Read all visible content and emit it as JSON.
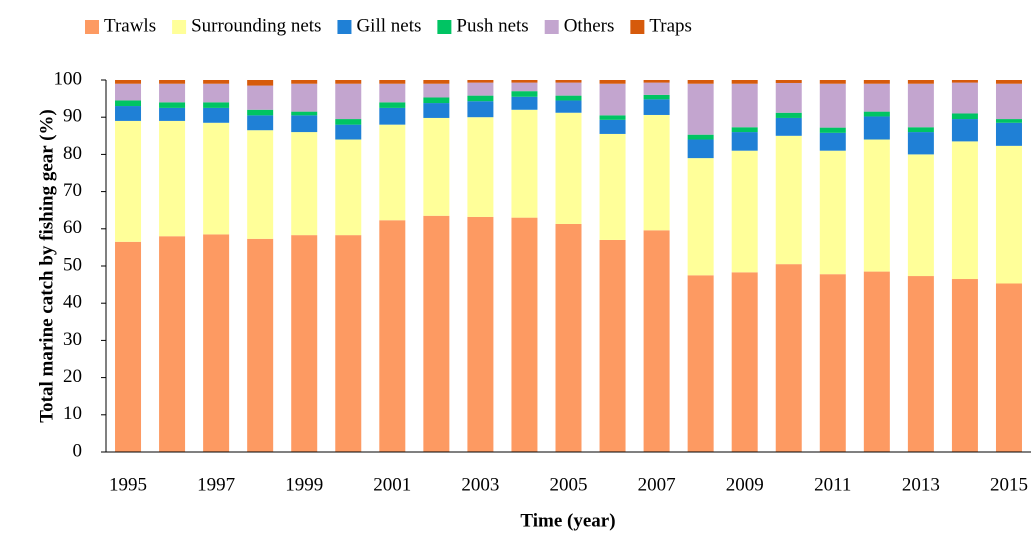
{
  "chart_data": {
    "type": "stacked_bar",
    "x_label": "Time (year)",
    "y_label": "Total marine catch by fishing gear (%)",
    "categories": [
      "1995",
      null,
      "1997",
      null,
      "1999",
      null,
      "2001",
      null,
      "2003",
      null,
      "2005",
      null,
      "2007",
      null,
      "2009",
      null,
      "2011",
      null,
      "2013",
      null,
      "2015"
    ],
    "series": [
      {
        "name": "Trawls",
        "color": "#fd9a62",
        "values": [
          56.5,
          58,
          58.5,
          57.3,
          58.3,
          58.3,
          62.3,
          63.5,
          63.2,
          63,
          61.3,
          57,
          59.6,
          47.5,
          48.3,
          50.5,
          47.8,
          48.5,
          47.3,
          46.5,
          45.3
        ]
      },
      {
        "name": "Surrounding nets",
        "color": "#ffff99",
        "values": [
          32.5,
          31,
          30,
          29.2,
          27.7,
          25.7,
          25.7,
          26.3,
          26.8,
          29,
          29.9,
          28.5,
          31,
          31.5,
          32.7,
          34.5,
          33.2,
          35.5,
          32.7,
          37,
          37
        ]
      },
      {
        "name": "Gill nets",
        "color": "#1f80d6",
        "values": [
          4,
          3.5,
          4,
          4,
          4.5,
          4,
          4.5,
          4,
          4.3,
          3.5,
          3.3,
          3.8,
          4.2,
          5,
          5,
          4.8,
          4.8,
          6.2,
          6,
          6,
          6.2
        ]
      },
      {
        "name": "Push nets",
        "color": "#00c463",
        "values": [
          1.5,
          1.5,
          1.5,
          1.5,
          1,
          1.5,
          1.5,
          1.5,
          1.5,
          1.5,
          1.3,
          1.2,
          1.2,
          1.3,
          1.3,
          1.4,
          1.4,
          1.3,
          1.3,
          1.5,
          1
        ]
      },
      {
        "name": "Others",
        "color": "#c3a5cf",
        "values": [
          4.5,
          5,
          5,
          6.5,
          7.5,
          9.5,
          5,
          3.7,
          3.5,
          2.3,
          3.5,
          8.5,
          3.3,
          13.7,
          11.7,
          8,
          11.8,
          7.5,
          11.7,
          8.3,
          9.5
        ]
      },
      {
        "name": "Traps",
        "color": "#d65a0b",
        "values": [
          1,
          1,
          1,
          1.5,
          1,
          1,
          1,
          1,
          0.7,
          0.7,
          0.7,
          1,
          0.7,
          1,
          1,
          0.8,
          1,
          1,
          1,
          0.7,
          1
        ]
      }
    ],
    "ylim": [
      0,
      100
    ],
    "yticks": [
      0,
      10,
      20,
      30,
      40,
      50,
      60,
      70,
      80,
      90,
      100
    ],
    "grid": false,
    "legend": "top"
  }
}
